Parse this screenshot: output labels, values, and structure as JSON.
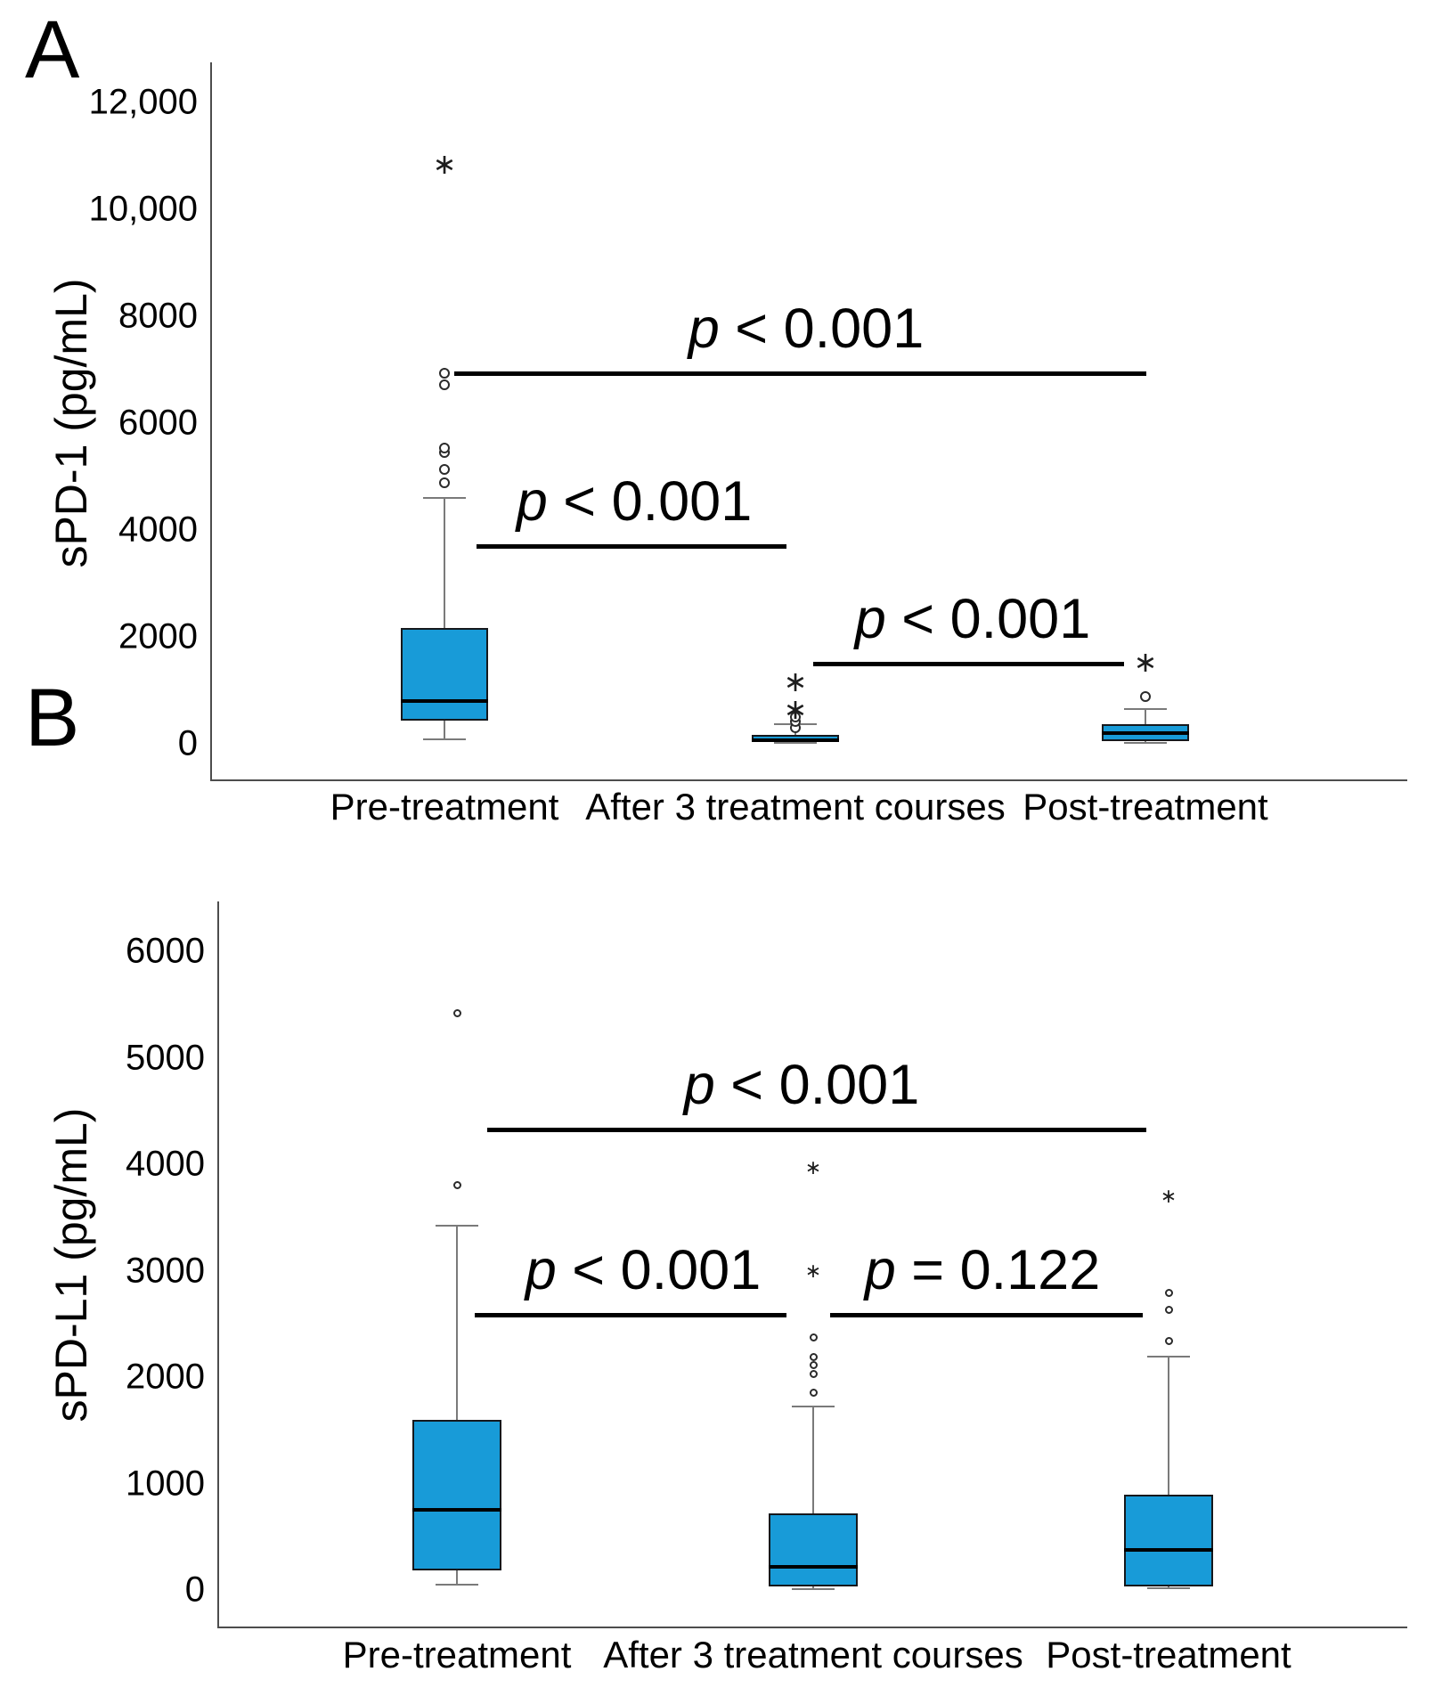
{
  "chart_data": [
    {
      "type": "box",
      "panel_label": "A",
      "ylabel": "sPD-1 (pg/mL)",
      "ylim": [
        0,
        12600
      ],
      "grid": false,
      "yticks": [
        {
          "value": 0,
          "label": "0"
        },
        {
          "value": 2000,
          "label": "2000"
        },
        {
          "value": 4000,
          "label": "4000"
        },
        {
          "value": 6000,
          "label": "6000"
        },
        {
          "value": 8000,
          "label": "8000"
        },
        {
          "value": 10000,
          "label": "10,000"
        },
        {
          "value": 12000,
          "label": "12,000"
        }
      ],
      "categories": [
        "Pre-treatment",
        "After 3 treatment courses",
        "Post-treatment"
      ],
      "series": [
        {
          "category": "Pre-treatment",
          "whisker_min": 80,
          "q1": 430,
          "median": 800,
          "q3": 2170,
          "whisker_max": 4600,
          "outliers_circles": [
            4880,
            5130,
            5450,
            5530,
            6720,
            6930
          ],
          "outliers_stars": [
            10850
          ]
        },
        {
          "category": "After 3 treatment courses",
          "whisker_min": 10,
          "q1": 25,
          "median": 70,
          "q3": 170,
          "whisker_max": 370,
          "outliers_circles": [
            300,
            420,
            500
          ],
          "outliers_stars": [
            650,
            1170
          ]
        },
        {
          "category": "Post-treatment",
          "whisker_min": 15,
          "q1": 50,
          "median": 200,
          "q3": 370,
          "whisker_max": 650,
          "outliers_circles": [
            880
          ],
          "outliers_stars": [
            1530
          ]
        }
      ],
      "annotations": [
        {
          "label": "p < 0.001",
          "compares": [
            "Pre-treatment",
            "Post-treatment"
          ]
        },
        {
          "label": "p < 0.001",
          "compares": [
            "Pre-treatment",
            "After 3 treatment courses"
          ]
        },
        {
          "label": "p < 0.001",
          "compares": [
            "After 3 treatment courses",
            "Post-treatment"
          ]
        }
      ]
    },
    {
      "type": "box",
      "panel_label": "B",
      "ylabel": "sPD-L1 (pg/mL)",
      "ylim": [
        0,
        6200
      ],
      "grid": false,
      "yticks": [
        {
          "value": 0,
          "label": "0"
        },
        {
          "value": 1000,
          "label": "1000"
        },
        {
          "value": 2000,
          "label": "2000"
        },
        {
          "value": 3000,
          "label": "3000"
        },
        {
          "value": 4000,
          "label": "4000"
        },
        {
          "value": 5000,
          "label": "5000"
        },
        {
          "value": 6000,
          "label": "6000"
        }
      ],
      "categories": [
        "Pre-treatment",
        "After 3 treatment courses",
        "Post-treatment"
      ],
      "series": [
        {
          "category": "Pre-treatment",
          "whisker_min": 50,
          "q1": 180,
          "median": 750,
          "q3": 1600,
          "whisker_max": 3420,
          "outliers_circles": [
            3800,
            5420
          ],
          "outliers_stars": []
        },
        {
          "category": "After 3 treatment courses",
          "whisker_min": 10,
          "q1": 30,
          "median": 220,
          "q3": 720,
          "whisker_max": 1720,
          "outliers_circles": [
            1850,
            2030,
            2110,
            2190,
            2370
          ],
          "outliers_stars": [
            3000,
            3970
          ]
        },
        {
          "category": "Post-treatment",
          "whisker_min": 20,
          "q1": 30,
          "median": 380,
          "q3": 895,
          "whisker_max": 2190,
          "outliers_circles": [
            2340,
            2630,
            2790
          ],
          "outliers_stars": [
            3700
          ]
        }
      ],
      "annotations": [
        {
          "label": "p < 0.001",
          "compares": [
            "Pre-treatment",
            "Post-treatment"
          ]
        },
        {
          "label": "p < 0.001",
          "compares": [
            "Pre-treatment",
            "After 3 treatment courses"
          ]
        },
        {
          "label": "p = 0.122",
          "compares": [
            "After 3 treatment courses",
            "Post-treatment"
          ]
        }
      ]
    }
  ]
}
